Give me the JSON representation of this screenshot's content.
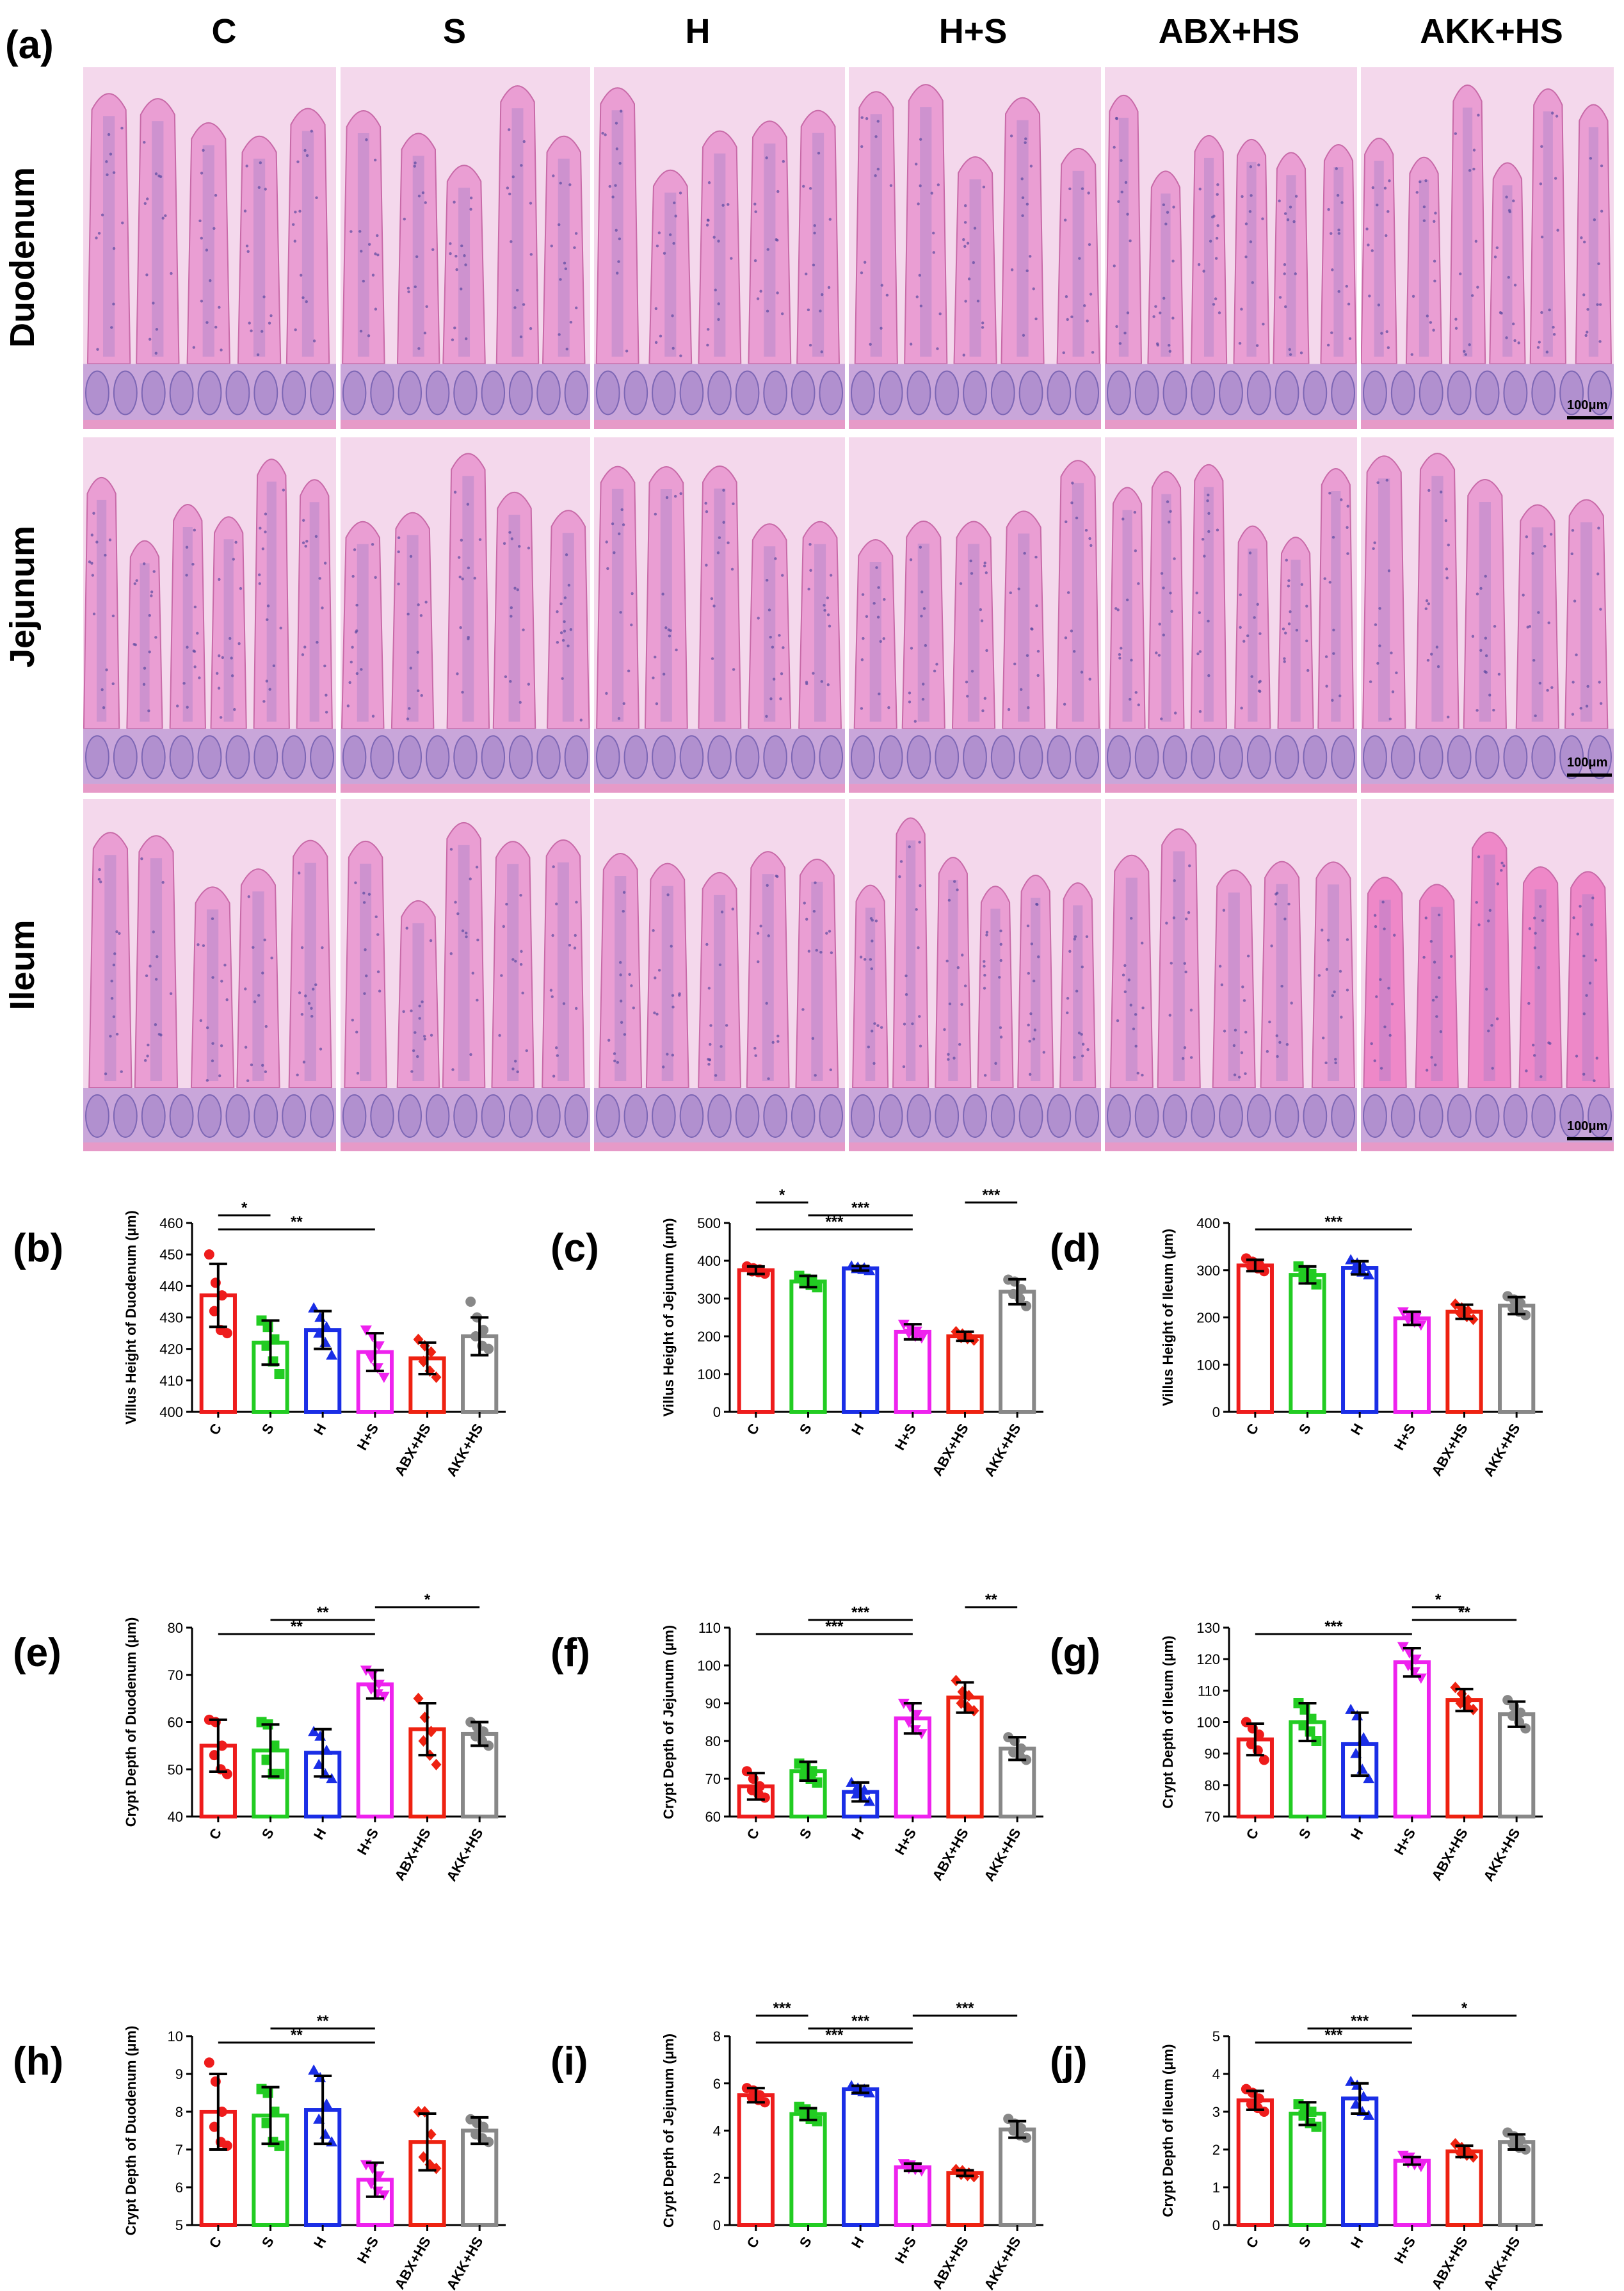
{
  "panel_a": {
    "label": "(a)",
    "groups": [
      "C",
      "S",
      "H",
      "H+S",
      "ABX+HS",
      "AKK+HS"
    ],
    "tissues": [
      "Duodenum",
      "Jejunum",
      "Ileum"
    ],
    "scale_label": "100μm"
  },
  "colors": {
    "C": "#ee1c1c",
    "S": "#22cc22",
    "H": "#1a2ee6",
    "H+S": "#ee22ee",
    "ABX+HS": "#ee2211",
    "AKK+HS": "#888888"
  },
  "chart_data": [
    {
      "id": "b",
      "label": "(b)",
      "type": "bar",
      "ylabel": "Villus Height of Duodenum (μm)",
      "categories": [
        "C",
        "S",
        "H",
        "H+S",
        "ABX+HS",
        "AKK+HS"
      ],
      "ylim": [
        400,
        460
      ],
      "yticks": [
        400,
        410,
        420,
        430,
        440,
        450,
        460
      ],
      "values": [
        437,
        422,
        426,
        419,
        417,
        424
      ],
      "errors": [
        10,
        7,
        6,
        6,
        5,
        6
      ],
      "points": [
        [
          450,
          441,
          437,
          432,
          426,
          425
        ],
        [
          429,
          427,
          423,
          421,
          416,
          412
        ],
        [
          433,
          430,
          427,
          425,
          422,
          418
        ],
        [
          426,
          424,
          421,
          417,
          414,
          411
        ],
        [
          423,
          421,
          419,
          416,
          413,
          411
        ],
        [
          435,
          430,
          426,
          424,
          421,
          420
        ]
      ],
      "significance": [
        {
          "from": 0,
          "to": 1,
          "text": "*"
        },
        {
          "from": 0,
          "to": 3,
          "text": "**"
        }
      ]
    },
    {
      "id": "c",
      "label": "(c)",
      "type": "bar",
      "ylabel": "Villus Height of Jejunum (μm)",
      "categories": [
        "C",
        "S",
        "H",
        "H+S",
        "ABX+HS",
        "AKK+HS"
      ],
      "ylim": [
        0,
        500
      ],
      "yticks": [
        0,
        100,
        200,
        300,
        400,
        500
      ],
      "values": [
        375,
        345,
        380,
        212,
        200,
        318
      ],
      "errors": [
        10,
        15,
        6,
        20,
        12,
        33
      ],
      "points": [
        [
          385,
          380,
          377,
          372,
          370,
          366
        ],
        [
          360,
          352,
          348,
          342,
          336,
          330
        ],
        [
          386,
          383,
          381,
          379,
          377,
          374
        ],
        [
          232,
          222,
          214,
          208,
          200,
          196
        ],
        [
          212,
          206,
          201,
          197,
          194,
          190
        ],
        [
          350,
          345,
          325,
          312,
          300,
          280
        ]
      ],
      "significance": [
        {
          "from": 0,
          "to": 1,
          "text": "*"
        },
        {
          "from": 0,
          "to": 3,
          "text": "***"
        },
        {
          "from": 1,
          "to": 3,
          "text": "***"
        },
        {
          "from": 4,
          "to": 5,
          "text": "***"
        }
      ]
    },
    {
      "id": "d",
      "label": "(d)",
      "type": "bar",
      "ylabel": "Villus Height of Ileum (μm)",
      "categories": [
        "C",
        "S",
        "H",
        "H+S",
        "ABX+HS",
        "AKK+HS"
      ],
      "ylim": [
        0,
        400
      ],
      "yticks": [
        0,
        100,
        200,
        300,
        400
      ],
      "values": [
        310,
        290,
        305,
        198,
        212,
        225
      ],
      "errors": [
        12,
        18,
        14,
        14,
        15,
        18
      ],
      "points": [
        [
          325,
          318,
          312,
          308,
          304,
          298
        ],
        [
          308,
          300,
          292,
          286,
          280,
          270
        ],
        [
          322,
          315,
          308,
          302,
          296,
          290
        ],
        [
          212,
          205,
          200,
          195,
          190,
          184
        ],
        [
          228,
          220,
          214,
          208,
          202,
          196
        ],
        [
          245,
          238,
          230,
          220,
          212,
          205
        ]
      ],
      "significance": [
        {
          "from": 0,
          "to": 3,
          "text": "***"
        }
      ]
    },
    {
      "id": "e",
      "label": "(e)",
      "type": "bar",
      "ylabel": "Crypt Depth of Duodenum (μm)",
      "categories": [
        "C",
        "S",
        "H",
        "H+S",
        "ABX+HS",
        "AKK+HS"
      ],
      "ylim": [
        40,
        80
      ],
      "yticks": [
        40,
        50,
        60,
        70,
        80
      ],
      "values": [
        55,
        54,
        53.5,
        68,
        58.5,
        57.5
      ],
      "errors": [
        5.5,
        5.5,
        5,
        3,
        5.5,
        2.5
      ],
      "points": [
        [
          60.5,
          60,
          55,
          53,
          50,
          49
        ],
        [
          60,
          59.5,
          55,
          52,
          49,
          49
        ],
        [
          58,
          57,
          54,
          51,
          49,
          48
        ],
        [
          71,
          70,
          68,
          67,
          66,
          65.5
        ],
        [
          65,
          61,
          58,
          56,
          53,
          51
        ],
        [
          60,
          59,
          58,
          57,
          56,
          55
        ]
      ],
      "significance": [
        {
          "from": 0,
          "to": 3,
          "text": "**"
        },
        {
          "from": 1,
          "to": 3,
          "text": "**"
        },
        {
          "from": 3,
          "to": 5,
          "text": "*"
        }
      ]
    },
    {
      "id": "f",
      "label": "(f)",
      "type": "bar",
      "ylabel": "Crypt Depth of Jejunum (μm)",
      "categories": [
        "C",
        "S",
        "H",
        "H+S",
        "ABX+HS",
        "AKK+HS"
      ],
      "ylim": [
        60,
        110
      ],
      "yticks": [
        60,
        70,
        80,
        90,
        100,
        110
      ],
      "values": [
        68,
        72,
        66.5,
        86,
        91.5,
        78
      ],
      "errors": [
        3.5,
        2.5,
        2.5,
        4,
        4,
        3
      ],
      "points": [
        [
          72,
          70,
          68,
          67,
          66,
          65
        ],
        [
          74,
          73,
          72,
          71,
          70,
          69
        ],
        [
          69,
          68,
          67,
          66,
          65,
          64
        ],
        [
          90,
          89,
          87,
          85,
          83,
          82
        ],
        [
          96,
          93,
          92,
          90,
          89,
          88
        ],
        [
          81,
          80,
          78,
          77,
          76,
          75
        ]
      ],
      "significance": [
        {
          "from": 0,
          "to": 3,
          "text": "***"
        },
        {
          "from": 1,
          "to": 3,
          "text": "***"
        },
        {
          "from": 4,
          "to": 5,
          "text": "**"
        }
      ]
    },
    {
      "id": "g",
      "label": "(g)",
      "type": "bar",
      "ylabel": "Crypt Depth of Ileum (μm)",
      "categories": [
        "C",
        "S",
        "H",
        "H+S",
        "ABX+HS",
        "AKK+HS"
      ],
      "ylim": [
        70,
        130
      ],
      "yticks": [
        70,
        80,
        90,
        100,
        110,
        120,
        130
      ],
      "values": [
        94.5,
        100,
        93,
        119,
        107,
        102.5
      ],
      "errors": [
        5,
        6,
        10,
        4.5,
        3.5,
        4
      ],
      "points": [
        [
          100,
          98,
          96,
          93,
          91,
          88
        ],
        [
          106,
          104,
          101,
          99,
          97,
          94
        ],
        [
          104,
          102,
          95,
          90,
          85,
          82
        ],
        [
          124,
          122,
          120,
          118,
          116,
          114
        ],
        [
          111,
          109,
          107,
          106,
          105,
          104
        ],
        [
          107,
          105,
          103,
          102,
          100,
          98
        ]
      ],
      "significance": [
        {
          "from": 0,
          "to": 3,
          "text": "***"
        },
        {
          "from": 3,
          "to": 4,
          "text": "*"
        },
        {
          "from": 3,
          "to": 5,
          "text": "**"
        }
      ]
    },
    {
      "id": "h",
      "label": "(h)",
      "type": "bar",
      "ylabel": "Crypt Depth of Duodenum (μm)",
      "categories": [
        "C",
        "S",
        "H",
        "H+S",
        "ABX+HS",
        "AKK+HS"
      ],
      "ylim": [
        5,
        10
      ],
      "yticks": [
        5,
        6,
        7,
        8,
        9,
        10
      ],
      "values": [
        8.0,
        7.9,
        8.05,
        6.2,
        7.2,
        7.5
      ],
      "errors": [
        1.0,
        0.75,
        0.9,
        0.45,
        0.75,
        0.35
      ],
      "points": [
        [
          9.3,
          8.8,
          8.0,
          7.6,
          7.2,
          7.1
        ],
        [
          8.6,
          8.5,
          8.0,
          7.7,
          7.2,
          7.1
        ],
        [
          9.1,
          8.9,
          8.2,
          7.8,
          7.4,
          7.2
        ],
        [
          6.6,
          6.5,
          6.3,
          6.1,
          5.9,
          5.8
        ],
        [
          8.0,
          8.0,
          7.4,
          6.8,
          6.6,
          6.5
        ],
        [
          7.8,
          7.7,
          7.6,
          7.4,
          7.3,
          7.2
        ]
      ],
      "significance": [
        {
          "from": 0,
          "to": 3,
          "text": "**"
        },
        {
          "from": 1,
          "to": 3,
          "text": "**"
        }
      ]
    },
    {
      "id": "i",
      "label": "(i)",
      "type": "bar",
      "ylabel": "Crypt Depth of Jejunum  (μm)",
      "categories": [
        "C",
        "S",
        "H",
        "H+S",
        "ABX+HS",
        "AKK+HS"
      ],
      "ylim": [
        0,
        8
      ],
      "yticks": [
        0,
        2,
        4,
        6,
        8
      ],
      "values": [
        5.5,
        4.7,
        5.75,
        2.45,
        2.2,
        4.05
      ],
      "errors": [
        0.3,
        0.25,
        0.15,
        0.15,
        0.12,
        0.35
      ],
      "points": [
        [
          5.8,
          5.7,
          5.5,
          5.4,
          5.3,
          5.2
        ],
        [
          5.0,
          4.9,
          4.7,
          4.6,
          4.5,
          4.4
        ],
        [
          5.9,
          5.8,
          5.75,
          5.7,
          5.65,
          5.6
        ],
        [
          2.6,
          2.55,
          2.45,
          2.4,
          2.35,
          2.3
        ],
        [
          2.35,
          2.3,
          2.2,
          2.15,
          2.1,
          2.05
        ],
        [
          4.5,
          4.3,
          4.1,
          4.0,
          3.8,
          3.7
        ]
      ],
      "significance": [
        {
          "from": 0,
          "to": 1,
          "text": "***"
        },
        {
          "from": 0,
          "to": 3,
          "text": "***"
        },
        {
          "from": 1,
          "to": 3,
          "text": "***"
        },
        {
          "from": 3,
          "to": 5,
          "text": "***"
        }
      ]
    },
    {
      "id": "j",
      "label": "(j)",
      "type": "bar",
      "ylabel": "Crypt Depth of Ileum (μm)",
      "categories": [
        "C",
        "S",
        "H",
        "H+S",
        "ABX+HS",
        "AKK+HS"
      ],
      "ylim": [
        0,
        5
      ],
      "yticks": [
        0,
        1,
        2,
        3,
        4,
        5
      ],
      "values": [
        3.3,
        2.95,
        3.35,
        1.7,
        1.95,
        2.2
      ],
      "errors": [
        0.25,
        0.3,
        0.4,
        0.1,
        0.15,
        0.2
      ],
      "points": [
        [
          3.6,
          3.5,
          3.35,
          3.2,
          3.1,
          3.0
        ],
        [
          3.2,
          3.1,
          3.0,
          2.9,
          2.7,
          2.6
        ],
        [
          3.8,
          3.7,
          3.4,
          3.2,
          3.0,
          2.9
        ],
        [
          1.85,
          1.8,
          1.7,
          1.65,
          1.6,
          1.55
        ],
        [
          2.15,
          2.05,
          1.95,
          1.9,
          1.85,
          1.8
        ],
        [
          2.45,
          2.35,
          2.25,
          2.15,
          2.05,
          2.0
        ]
      ],
      "significance": [
        {
          "from": 0,
          "to": 3,
          "text": "***"
        },
        {
          "from": 1,
          "to": 3,
          "text": "***"
        },
        {
          "from": 3,
          "to": 5,
          "text": "*"
        }
      ]
    }
  ]
}
